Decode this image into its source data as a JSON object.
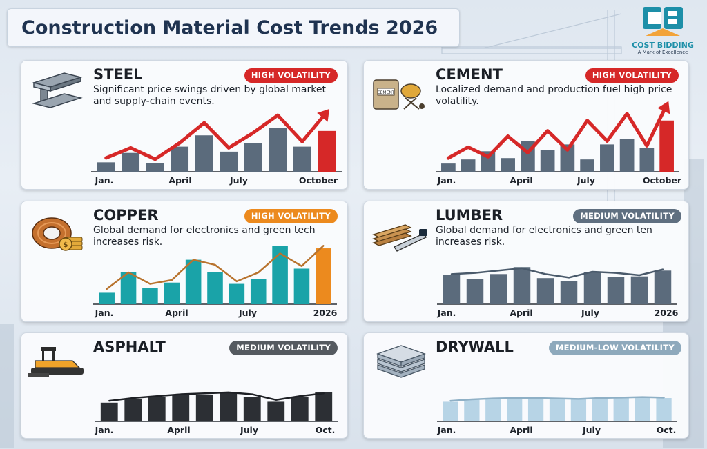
{
  "title": "Construction Material Cost Trends 2026",
  "logo": {
    "mark": "CB",
    "name": "COST BIDDING",
    "tagline": "A Mark of Excellence"
  },
  "colors": {
    "high_red": "#d62828",
    "high_orange": "#ec8a1e",
    "medium_dark": "#555a60",
    "medium_low": "#8ea9bc"
  },
  "cards": [
    {
      "name": "STEEL",
      "icon": "steel-beam-icon",
      "badge": "HIGH VOLATILITY",
      "badge_color": "#d62828",
      "description": "Significant price swings driven by global market and supply-chain events."
    },
    {
      "name": "CEMENT",
      "icon": "cement-mixer-icon",
      "badge": "HIGH VOLATILITY",
      "badge_color": "#d62828",
      "description": "Localized demand and production fuel high price volatility."
    },
    {
      "name": "COPPER",
      "icon": "copper-coil-icon",
      "badge": "HIGH VOLATILITY",
      "badge_color": "#ec8a1e",
      "description": "Global demand for electronics and green tech increases risk."
    },
    {
      "name": "LUMBER",
      "icon": "lumber-saw-icon",
      "badge": "MEDIUM VOLATILITY",
      "badge_color": "#5f6f80",
      "description": "Global demand for electronics and green ten increases risk."
    },
    {
      "name": "ASPHALT",
      "icon": "asphalt-paver-icon",
      "badge": "MEDIUM VOLATILITY",
      "badge_color": "#555a60",
      "description": ""
    },
    {
      "name": "DRYWALL",
      "icon": "drywall-sheets-icon",
      "badge": "MEDIUM-LOW VOLATILITY",
      "badge_color": "#8ea9bc",
      "description": ""
    }
  ],
  "chart_data": [
    {
      "type": "bar",
      "material": "STEEL",
      "x_ticks": [
        "Jan.",
        "April",
        "July",
        "October"
      ],
      "bar_color": "#5b6b7c",
      "last_bar_color": "#d62828",
      "line_color": "#d62828",
      "values": [
        15,
        30,
        14,
        40,
        58,
        32,
        46,
        70,
        40,
        65
      ],
      "trend": [
        22,
        38,
        20,
        46,
        78,
        38,
        62,
        90,
        48,
        95
      ],
      "ylim": [
        0,
        100
      ]
    },
    {
      "type": "bar",
      "material": "CEMENT",
      "x_ticks": [
        "Jan.",
        "April",
        "July",
        "October"
      ],
      "bar_color": "#5b6b7c",
      "last_bar_color": "#d62828",
      "line_color": "#d62828",
      "values": [
        12,
        18,
        30,
        20,
        45,
        32,
        40,
        18,
        40,
        48,
        35,
        75
      ],
      "trend": [
        20,
        36,
        22,
        52,
        28,
        60,
        32,
        75,
        45,
        85,
        38,
        98
      ],
      "ylim": [
        0,
        100
      ]
    },
    {
      "type": "bar",
      "material": "COPPER",
      "x_ticks": [
        "Jan.",
        "April",
        "July",
        "2026"
      ],
      "bar_color": "#1aa3a8",
      "last_bar_color": "#ec8a1e",
      "line_color": "#b8732e",
      "values": [
        18,
        50,
        26,
        34,
        70,
        50,
        32,
        40,
        92,
        56,
        88
      ],
      "trend": [
        24,
        50,
        32,
        38,
        70,
        62,
        36,
        50,
        80,
        60,
        92
      ],
      "ylim": [
        0,
        100
      ]
    },
    {
      "type": "bar",
      "material": "LUMBER",
      "x_ticks": [
        "Jan.",
        "April",
        "July",
        "2026"
      ],
      "bar_color": "#5b6b7c",
      "line_color": "#4a5a6b",
      "values": [
        50,
        43,
        52,
        64,
        45,
        40,
        55,
        47,
        48,
        58
      ],
      "trend": [
        52,
        54,
        58,
        62,
        52,
        46,
        56,
        54,
        50,
        60
      ],
      "ylim": [
        0,
        100
      ]
    },
    {
      "type": "bar",
      "material": "ASPHALT",
      "x_ticks": [
        "Jan.",
        "April",
        "July",
        "Oct."
      ],
      "bar_color": "#2c2f34",
      "line_color": "#1e2025",
      "values": [
        40,
        48,
        53,
        57,
        57,
        62,
        52,
        42,
        52,
        62
      ],
      "trend": [
        44,
        50,
        54,
        58,
        60,
        62,
        58,
        46,
        54,
        60
      ],
      "ylim": [
        0,
        100
      ]
    },
    {
      "type": "bar",
      "material": "DRYWALL",
      "x_ticks": [
        "Jan.",
        "April",
        "July",
        "Oct."
      ],
      "bar_color": "#b7d4e6",
      "line_color": "#8fb0c6",
      "values": [
        42,
        46,
        48,
        50,
        50,
        49,
        48,
        49,
        51,
        51,
        50
      ],
      "trend": [
        44,
        47,
        49,
        50,
        50,
        49,
        48,
        50,
        51,
        52,
        51
      ],
      "ylim": [
        0,
        100
      ]
    }
  ]
}
